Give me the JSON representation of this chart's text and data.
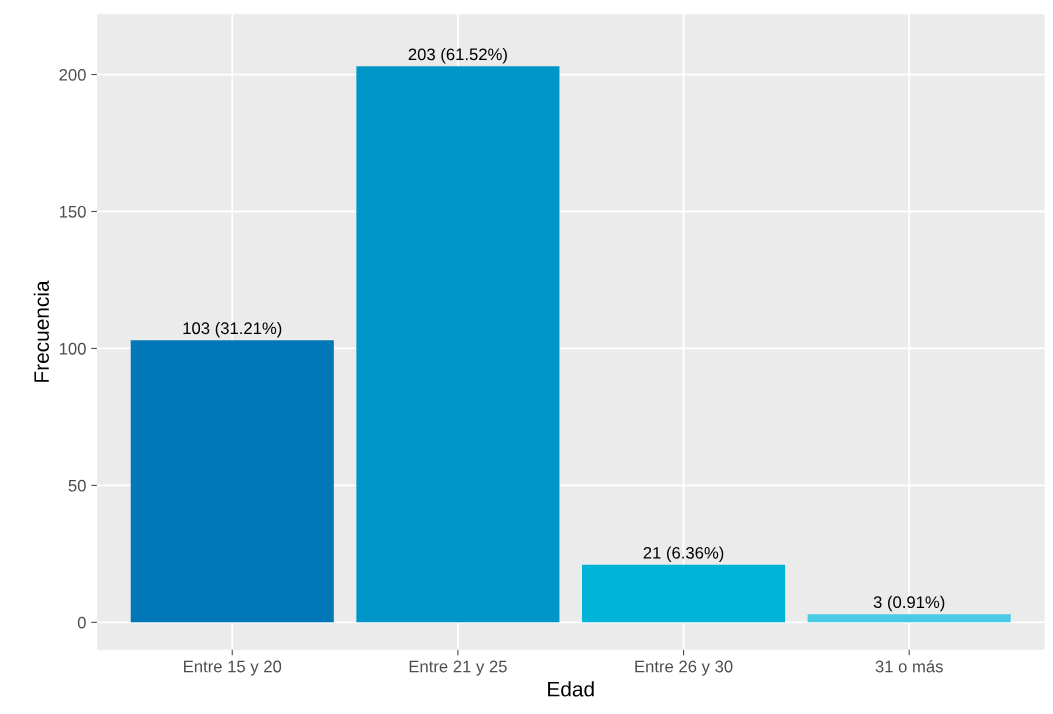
{
  "chart_data": {
    "type": "bar",
    "xlabel": "Edad",
    "ylabel": "Frecuencia",
    "categories": [
      "Entre 15 y 20",
      "Entre 21 y 25",
      "Entre 26 y 30",
      "31 o más"
    ],
    "values": [
      103,
      203,
      21,
      3
    ],
    "colors": [
      "#0077b6",
      "#0096c7",
      "#00b4d8",
      "#48cae4"
    ],
    "value_labels": [
      "103 (31.21%)",
      "203 (61.52%)",
      "21 (6.36%)",
      "3 (0.91%)"
    ],
    "ylim": [
      -10,
      222
    ],
    "yticks": [
      0,
      50,
      100,
      150,
      200
    ],
    "grid": true
  }
}
